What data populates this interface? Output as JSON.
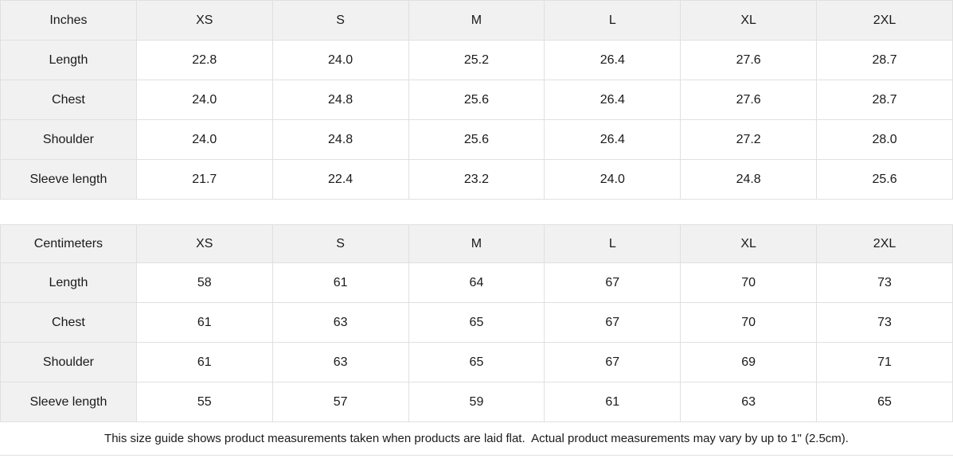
{
  "tables": [
    {
      "unit": "Inches",
      "sizes": [
        "XS",
        "S",
        "M",
        "L",
        "XL",
        "2XL"
      ],
      "rows": [
        {
          "label": "Length",
          "values": [
            "22.8",
            "24.0",
            "25.2",
            "26.4",
            "27.6",
            "28.7"
          ]
        },
        {
          "label": "Chest",
          "values": [
            "24.0",
            "24.8",
            "25.6",
            "26.4",
            "27.6",
            "28.7"
          ]
        },
        {
          "label": "Shoulder",
          "values": [
            "24.0",
            "24.8",
            "25.6",
            "26.4",
            "27.2",
            "28.0"
          ]
        },
        {
          "label": "Sleeve length",
          "values": [
            "21.7",
            "22.4",
            "23.2",
            "24.0",
            "24.8",
            "25.6"
          ]
        }
      ]
    },
    {
      "unit": "Centimeters",
      "sizes": [
        "XS",
        "S",
        "M",
        "L",
        "XL",
        "2XL"
      ],
      "rows": [
        {
          "label": "Length",
          "values": [
            "58",
            "61",
            "64",
            "67",
            "70",
            "73"
          ]
        },
        {
          "label": "Chest",
          "values": [
            "61",
            "63",
            "65",
            "67",
            "70",
            "73"
          ]
        },
        {
          "label": "Shoulder",
          "values": [
            "61",
            "63",
            "65",
            "67",
            "69",
            "71"
          ]
        },
        {
          "label": "Sleeve length",
          "values": [
            "55",
            "57",
            "59",
            "61",
            "63",
            "65"
          ]
        }
      ]
    }
  ],
  "footnote": "This size guide shows product measurements taken when products are laid flat.  Actual product measurements may vary by up to 1\" (2.5cm).",
  "colors": {
    "header_bg": "#f1f1f1",
    "cell_bg": "#ffffff",
    "border": "#e0e0e0",
    "text": "#1a1a1a"
  }
}
